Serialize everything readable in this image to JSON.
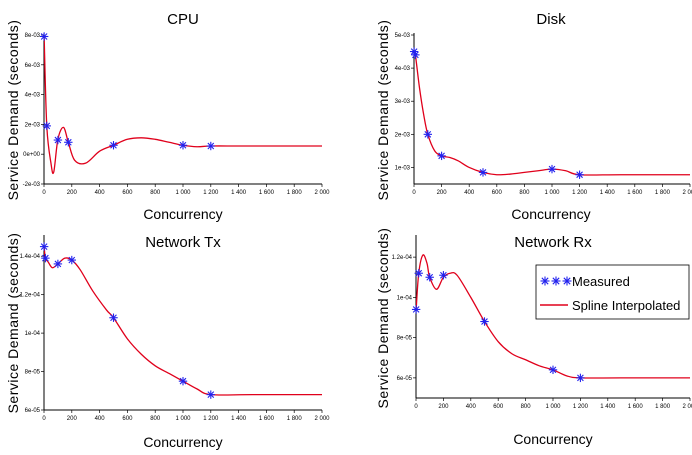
{
  "legend": {
    "measured": "Measured",
    "spline": "Spline Interpolated"
  },
  "colors": {
    "spline": "#e0001b",
    "marker": "#2222ee"
  },
  "chart_data": [
    {
      "type": "line",
      "title": "CPU",
      "xlabel": "Concurrency",
      "ylabel": "Service Demand (seconds)",
      "xlim": [
        0,
        2000
      ],
      "ylim": [
        -0.002,
        0.008
      ],
      "xticks": [
        0,
        200,
        400,
        600,
        800,
        1000,
        1200,
        1400,
        1600,
        1800,
        2000
      ],
      "xtick_labels": [
        "0",
        "200",
        "400",
        "600",
        "800",
        "1 000",
        "1 200",
        "1 400",
        "1 600",
        "1 800",
        "2 000"
      ],
      "yticks": [
        -0.002,
        0,
        0.002,
        0.004,
        0.006,
        0.008
      ],
      "ytick_labels": [
        "-2e-03",
        "0e+00",
        "2e-03",
        "4e-03",
        "6e-03",
        "8e-03"
      ],
      "series": [
        {
          "name": "Measured",
          "x": [
            1,
            20,
            100,
            175,
            500,
            1000,
            1200
          ],
          "y": [
            0.0079,
            0.0019,
            0.00095,
            0.0008,
            0.0006,
            0.0006,
            0.00055
          ]
        },
        {
          "name": "Spline Interpolated",
          "x": [
            1,
            20,
            50,
            70,
            100,
            140,
            175,
            220,
            300,
            400,
            500,
            600,
            700,
            800,
            900,
            1000,
            1100,
            1200,
            1400,
            1700,
            2000
          ],
          "y": [
            0.0079,
            0.0019,
            -0.0006,
            -0.0012,
            0.001,
            0.0018,
            0.0008,
            -0.0004,
            -0.0006,
            0.0002,
            0.0006,
            0.001,
            0.0011,
            0.001,
            0.0008,
            0.0006,
            0.0005,
            0.00055,
            0.00055,
            0.00055,
            0.00055
          ]
        }
      ]
    },
    {
      "type": "line",
      "title": "Disk",
      "xlabel": "Concurrency",
      "ylabel": "Service Demand (seconds)",
      "xlim": [
        0,
        2000
      ],
      "ylim": [
        0.0005,
        0.005
      ],
      "xticks": [
        0,
        200,
        400,
        600,
        800,
        1000,
        1200,
        1400,
        1600,
        1800,
        2000
      ],
      "xtick_labels": [
        "0",
        "200",
        "400",
        "600",
        "800",
        "1 000",
        "1 200",
        "1 400",
        "1 600",
        "1 800",
        "2 000"
      ],
      "yticks": [
        0.001,
        0.002,
        0.003,
        0.004,
        0.005
      ],
      "ytick_labels": [
        "1e-03",
        "2e-03",
        "3e-03",
        "4e-03",
        "5e-03"
      ],
      "series": [
        {
          "name": "Measured",
          "x": [
            1,
            10,
            100,
            200,
            500,
            1000,
            1200
          ],
          "y": [
            0.0045,
            0.0044,
            0.002,
            0.00135,
            0.00085,
            0.00095,
            0.00078
          ]
        },
        {
          "name": "Spline Interpolated",
          "x": [
            1,
            10,
            40,
            70,
            100,
            150,
            200,
            260,
            320,
            400,
            500,
            600,
            700,
            800,
            900,
            1000,
            1100,
            1200,
            1500,
            2000
          ],
          "y": [
            0.0045,
            0.0044,
            0.0034,
            0.0026,
            0.002,
            0.0015,
            0.00135,
            0.0013,
            0.0012,
            0.001,
            0.00085,
            0.00078,
            0.0008,
            0.00085,
            0.0009,
            0.00095,
            0.0009,
            0.00078,
            0.00078,
            0.00078
          ]
        }
      ]
    },
    {
      "type": "line",
      "title": "Network Tx",
      "xlabel": "Concurrency",
      "ylabel": "Service Demand (seconds)",
      "xlim": [
        0,
        2000
      ],
      "ylim": [
        6e-05,
        0.00015
      ],
      "xticks": [
        0,
        200,
        400,
        600,
        800,
        1000,
        1200,
        1400,
        1600,
        1800,
        2000
      ],
      "xtick_labels": [
        "0",
        "200",
        "400",
        "600",
        "800",
        "1 000",
        "1 200",
        "1 400",
        "1 600",
        "1 800",
        "2 000"
      ],
      "yticks": [
        6e-05,
        8e-05,
        0.0001,
        0.00012,
        0.00014
      ],
      "ytick_labels": [
        "6e-05",
        "8e-05",
        "1e-04",
        "1.2e-04",
        "1.4e-04"
      ],
      "series": [
        {
          "name": "Measured",
          "x": [
            1,
            10,
            100,
            200,
            500,
            1000,
            1200
          ],
          "y": [
            0.000145,
            0.000139,
            0.000136,
            0.000138,
            0.000108,
            7.5e-05,
            6.8e-05
          ]
        },
        {
          "name": "Spline Interpolated",
          "x": [
            1,
            10,
            30,
            60,
            100,
            150,
            200,
            260,
            350,
            450,
            500,
            600,
            700,
            800,
            900,
            1000,
            1100,
            1200,
            1500,
            2000
          ],
          "y": [
            0.000145,
            0.000139,
            0.000137,
            0.000134,
            0.000136,
            0.000139,
            0.000138,
            0.000133,
            0.000122,
            0.000112,
            0.000108,
            9.7e-05,
            8.9e-05,
            8.3e-05,
            7.9e-05,
            7.5e-05,
            7.1e-05,
            6.8e-05,
            6.8e-05,
            6.8e-05
          ]
        }
      ]
    },
    {
      "type": "line",
      "title": "Network Rx",
      "xlabel": "Concurrency",
      "ylabel": "Service Demand (seconds)",
      "xlim": [
        0,
        2000
      ],
      "ylim": [
        5e-05,
        0.00013
      ],
      "xticks": [
        0,
        200,
        400,
        600,
        800,
        1000,
        1200,
        1400,
        1600,
        1800,
        2000
      ],
      "xtick_labels": [
        "0",
        "200",
        "400",
        "600",
        "800",
        "1 000",
        "1 200",
        "1 400",
        "1 600",
        "1 800",
        "2 000"
      ],
      "yticks": [
        6e-05,
        8e-05,
        0.0001,
        0.00012
      ],
      "ytick_labels": [
        "6e-05",
        "8e-05",
        "1e-04",
        "1.2e-04"
      ],
      "legend_position": "top-right",
      "series": [
        {
          "name": "Measured",
          "x": [
            1,
            20,
            100,
            200,
            500,
            1000,
            1200
          ],
          "y": [
            9.4e-05,
            0.000112,
            0.00011,
            0.000111,
            8.8e-05,
            6.4e-05,
            6e-05
          ]
        },
        {
          "name": "Spline Interpolated",
          "x": [
            1,
            20,
            50,
            80,
            100,
            150,
            200,
            250,
            300,
            400,
            500,
            600,
            700,
            800,
            900,
            1000,
            1100,
            1200,
            1500,
            2000
          ],
          "y": [
            9.4e-05,
            0.000112,
            0.000121,
            0.000117,
            0.00011,
            0.000104,
            0.00011,
            0.000112,
            0.000111,
            0.0001,
            8.8e-05,
            7.8e-05,
            7.2e-05,
            6.9e-05,
            6.6e-05,
            6.4e-05,
            6.1e-05,
            6e-05,
            6e-05,
            6e-05
          ]
        }
      ]
    }
  ]
}
